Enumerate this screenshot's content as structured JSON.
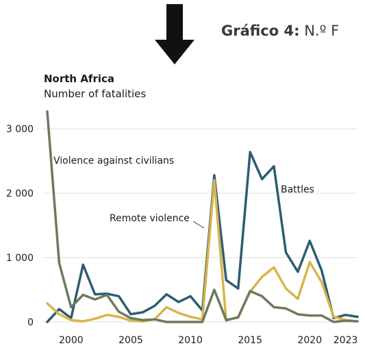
{
  "header": {
    "label": "Gráfico 4:",
    "text": "N.º F"
  },
  "chart_data": {
    "type": "line",
    "title": "North Africa",
    "subtitle": "Number of fatalities",
    "x": [
      1998,
      1999,
      2000,
      2001,
      2002,
      2003,
      2004,
      2005,
      2006,
      2007,
      2008,
      2009,
      2010,
      2011,
      2012,
      2013,
      2014,
      2015,
      2016,
      2017,
      2018,
      2019,
      2020,
      2021,
      2022,
      2023,
      2024
    ],
    "x_ticks": [
      2000,
      2005,
      2010,
      2015,
      2020,
      2023
    ],
    "x_tick_labels": [
      "2000",
      "2005",
      "2010",
      "2015",
      "2020",
      "2023"
    ],
    "y_ticks": [
      0,
      1000,
      2000,
      3000
    ],
    "y_tick_labels": [
      "0",
      "1 000",
      "2 000",
      "3 000"
    ],
    "ylim": [
      0,
      3300
    ],
    "xlim": [
      1998,
      2024
    ],
    "grid": true,
    "series": [
      {
        "name": "Battles",
        "color": "#2c5d73",
        "values": [
          0,
          200,
          60,
          890,
          430,
          440,
          400,
          120,
          150,
          250,
          430,
          310,
          400,
          180,
          2280,
          650,
          520,
          2640,
          2220,
          2420,
          1080,
          780,
          1260,
          800,
          60,
          110,
          80
        ]
      },
      {
        "name": "Remote violence",
        "color": "#d9b44a",
        "values": [
          290,
          120,
          30,
          10,
          50,
          110,
          80,
          20,
          10,
          40,
          230,
          140,
          80,
          40,
          2200,
          20,
          80,
          470,
          700,
          850,
          520,
          360,
          930,
          620,
          80,
          30,
          10
        ]
      },
      {
        "name": "Violence against civilians",
        "color": "#6b7a5e",
        "values": [
          3270,
          920,
          230,
          420,
          350,
          420,
          160,
          60,
          30,
          40,
          0,
          0,
          0,
          0,
          500,
          30,
          70,
          480,
          400,
          230,
          210,
          120,
          100,
          100,
          0,
          20,
          10
        ]
      }
    ],
    "annotations": [
      "Violence against civilians",
      "Battles",
      "Remote violence"
    ]
  }
}
